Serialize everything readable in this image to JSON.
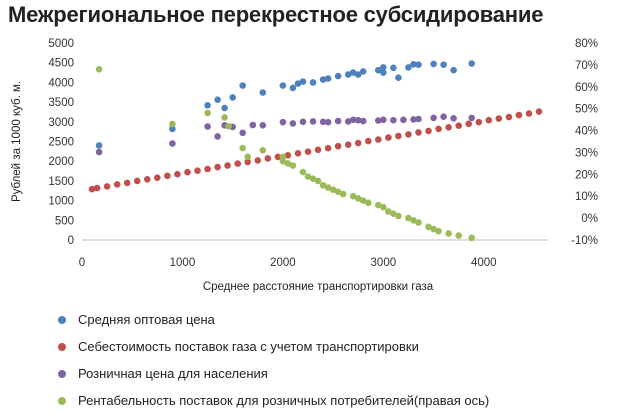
{
  "chart_data": {
    "type": "scatter",
    "title": "Межрегиональное перекрестное субсидирование",
    "xlabel": "Среднее расстояние транспортировки газа",
    "ylabel": "Рублей за 1000 куб. м.",
    "xlim": [
      0,
      4500
    ],
    "ylim": [
      0,
      5000
    ],
    "y2lim": [
      -10,
      80
    ],
    "x_ticks": [
      "0",
      "1000",
      "2000",
      "3000",
      "4000"
    ],
    "y_ticks": [
      "0",
      "500",
      "1000",
      "1500",
      "2000",
      "2500",
      "3000",
      "3500",
      "4000",
      "4500",
      "5000"
    ],
    "y2_ticks": [
      "-10%",
      "0%",
      "10%",
      "20%",
      "30%",
      "40%",
      "50%",
      "60%",
      "70%",
      "80%"
    ],
    "legend_position": "bottom",
    "series": [
      {
        "name": "Средняя оптовая цена",
        "color": "#4f81bd",
        "axis": "left",
        "points": [
          [
            170,
            2400
          ],
          [
            900,
            2820
          ],
          [
            1250,
            3420
          ],
          [
            1350,
            3560
          ],
          [
            1420,
            3350
          ],
          [
            1500,
            3620
          ],
          [
            1600,
            3920
          ],
          [
            1800,
            3740
          ],
          [
            2000,
            3920
          ],
          [
            2100,
            3860
          ],
          [
            2150,
            3970
          ],
          [
            2200,
            4020
          ],
          [
            2300,
            4000
          ],
          [
            2400,
            4070
          ],
          [
            2450,
            4100
          ],
          [
            2550,
            4160
          ],
          [
            2650,
            4200
          ],
          [
            2700,
            4250
          ],
          [
            2750,
            4200
          ],
          [
            2800,
            4280
          ],
          [
            2950,
            4310
          ],
          [
            3000,
            4380
          ],
          [
            3000,
            4250
          ],
          [
            3100,
            4370
          ],
          [
            3150,
            4120
          ],
          [
            3250,
            4380
          ],
          [
            3300,
            4460
          ],
          [
            3350,
            4450
          ],
          [
            3500,
            4470
          ],
          [
            3600,
            4450
          ],
          [
            3700,
            4310
          ],
          [
            3880,
            4480
          ]
        ]
      },
      {
        "name": "Себестоимость поставок газа с учетом транспортировки",
        "color": "#c0504d",
        "axis": "left",
        "points": [
          [
            100,
            1290
          ],
          [
            150,
            1320
          ],
          [
            250,
            1360
          ],
          [
            350,
            1410
          ],
          [
            450,
            1450
          ],
          [
            550,
            1500
          ],
          [
            650,
            1540
          ],
          [
            750,
            1580
          ],
          [
            850,
            1630
          ],
          [
            950,
            1670
          ],
          [
            1050,
            1720
          ],
          [
            1150,
            1760
          ],
          [
            1250,
            1800
          ],
          [
            1350,
            1850
          ],
          [
            1450,
            1890
          ],
          [
            1550,
            1940
          ],
          [
            1650,
            1980
          ],
          [
            1750,
            2020
          ],
          [
            1850,
            2070
          ],
          [
            1950,
            2110
          ],
          [
            2050,
            2150
          ],
          [
            2150,
            2200
          ],
          [
            2250,
            2240
          ],
          [
            2350,
            2290
          ],
          [
            2450,
            2330
          ],
          [
            2550,
            2380
          ],
          [
            2650,
            2420
          ],
          [
            2750,
            2460
          ],
          [
            2850,
            2510
          ],
          [
            2950,
            2550
          ],
          [
            3050,
            2600
          ],
          [
            3150,
            2640
          ],
          [
            3250,
            2680
          ],
          [
            3350,
            2730
          ],
          [
            3450,
            2770
          ],
          [
            3550,
            2820
          ],
          [
            3650,
            2860
          ],
          [
            3750,
            2900
          ],
          [
            3850,
            2950
          ],
          [
            3950,
            2990
          ],
          [
            4050,
            3040
          ],
          [
            4150,
            3080
          ],
          [
            4250,
            3120
          ],
          [
            4350,
            3170
          ],
          [
            4450,
            3210
          ],
          [
            4550,
            3260
          ]
        ]
      },
      {
        "name": "Розничная цена для населения",
        "color": "#8064a2",
        "axis": "left",
        "points": [
          [
            170,
            2230
          ],
          [
            900,
            2450
          ],
          [
            1250,
            2880
          ],
          [
            1350,
            2630
          ],
          [
            1420,
            2910
          ],
          [
            1500,
            2870
          ],
          [
            1600,
            2720
          ],
          [
            1700,
            2920
          ],
          [
            1800,
            2910
          ],
          [
            2000,
            2990
          ],
          [
            2100,
            2960
          ],
          [
            2200,
            3000
          ],
          [
            2300,
            3010
          ],
          [
            2400,
            3000
          ],
          [
            2450,
            2990
          ],
          [
            2550,
            3020
          ],
          [
            2650,
            3010
          ],
          [
            2700,
            3050
          ],
          [
            2750,
            3040
          ],
          [
            2800,
            3020
          ],
          [
            2950,
            3030
          ],
          [
            3000,
            3050
          ],
          [
            3100,
            3040
          ],
          [
            3200,
            3050
          ],
          [
            3300,
            3060
          ],
          [
            3350,
            3070
          ],
          [
            3500,
            3100
          ],
          [
            3600,
            3130
          ],
          [
            3700,
            3090
          ],
          [
            3880,
            3100
          ]
        ]
      },
      {
        "name": "Рентабельность поставок для розничных потребителей(правая ось)",
        "color": "#9bbb59",
        "axis": "right",
        "points": [
          [
            170,
            68
          ],
          [
            900,
            43
          ],
          [
            1250,
            48
          ],
          [
            1420,
            46
          ],
          [
            1460,
            42
          ],
          [
            1600,
            32
          ],
          [
            1650,
            28
          ],
          [
            1800,
            31
          ],
          [
            2000,
            28
          ],
          [
            2000,
            26
          ],
          [
            2050,
            25
          ],
          [
            2100,
            24
          ],
          [
            2200,
            21
          ],
          [
            2250,
            19
          ],
          [
            2300,
            18
          ],
          [
            2350,
            17
          ],
          [
            2400,
            15
          ],
          [
            2450,
            14
          ],
          [
            2500,
            13
          ],
          [
            2550,
            12
          ],
          [
            2600,
            11
          ],
          [
            2700,
            10
          ],
          [
            2750,
            9
          ],
          [
            2800,
            8
          ],
          [
            2850,
            7
          ],
          [
            2950,
            6
          ],
          [
            3000,
            5
          ],
          [
            3050,
            3
          ],
          [
            3100,
            2
          ],
          [
            3150,
            1
          ],
          [
            3250,
            0
          ],
          [
            3300,
            -1
          ],
          [
            3350,
            -2
          ],
          [
            3450,
            -4
          ],
          [
            3500,
            -5
          ],
          [
            3550,
            -6
          ],
          [
            3650,
            -7
          ],
          [
            3750,
            -8
          ],
          [
            3880,
            -9
          ]
        ]
      }
    ]
  }
}
